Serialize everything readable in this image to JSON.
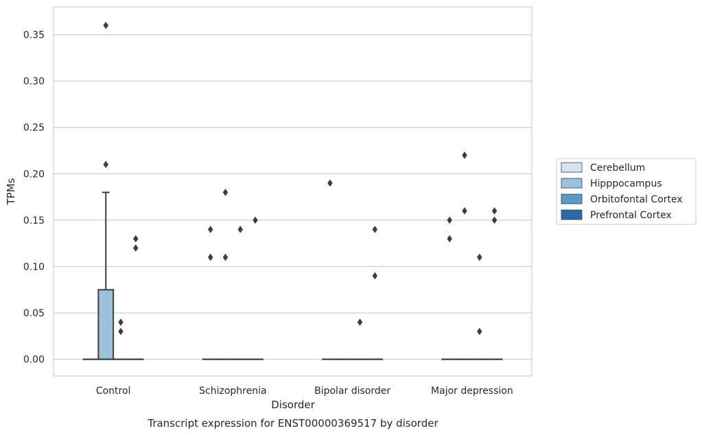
{
  "chart_data": {
    "type": "box",
    "title": "Transcript expression for ENST00000369517 by disorder",
    "xlabel": "Disorder",
    "ylabel": "TPMs",
    "ylim": [
      -0.018,
      0.38
    ],
    "yticks": [
      "0.00",
      "0.05",
      "0.10",
      "0.15",
      "0.20",
      "0.25",
      "0.30",
      "0.35"
    ],
    "ytick_values": [
      0,
      0.05,
      0.1,
      0.15,
      0.2,
      0.25,
      0.3,
      0.35
    ],
    "grid": "horizontal",
    "legend_position": "right",
    "categories": [
      "Control",
      "Schizophrenia",
      "Bipolar disorder",
      "Major depression"
    ],
    "series": [
      {
        "name": "Cerebellum",
        "color": "#d6e3f0",
        "boxes": [
          {
            "q1": 0,
            "median": 0,
            "q3": 0,
            "whislo": 0,
            "whishi": 0,
            "fliers": []
          },
          {
            "q1": 0,
            "median": 0,
            "q3": 0,
            "whislo": 0,
            "whishi": 0,
            "fliers": [
              0.14,
              0.11
            ]
          },
          {
            "q1": 0,
            "median": 0,
            "q3": 0,
            "whislo": 0,
            "whishi": 0,
            "fliers": [
              0.19
            ]
          },
          {
            "q1": 0,
            "median": 0,
            "q3": 0,
            "whislo": 0,
            "whishi": 0,
            "fliers": [
              0.15,
              0.13
            ]
          }
        ]
      },
      {
        "name": "Hipppocampus",
        "color": "#9bc2da",
        "boxes": [
          {
            "q1": 0,
            "median": 0,
            "q3": 0.075,
            "whislo": 0,
            "whishi": 0.18,
            "fliers": [
              0.36,
              0.21
            ]
          },
          {
            "q1": 0,
            "median": 0,
            "q3": 0,
            "whislo": 0,
            "whishi": 0,
            "fliers": [
              0.18,
              0.11
            ]
          },
          {
            "q1": 0,
            "median": 0,
            "q3": 0,
            "whislo": 0,
            "whishi": 0,
            "fliers": []
          },
          {
            "q1": 0,
            "median": 0,
            "q3": 0,
            "whislo": 0,
            "whishi": 0,
            "fliers": [
              0.22,
              0.16
            ]
          }
        ]
      },
      {
        "name": "Orbitofontal Cortex",
        "color": "#5a9ac8",
        "boxes": [
          {
            "q1": 0,
            "median": 0,
            "q3": 0,
            "whislo": 0,
            "whishi": 0,
            "fliers": [
              0.04,
              0.03
            ]
          },
          {
            "q1": 0,
            "median": 0,
            "q3": 0,
            "whislo": 0,
            "whishi": 0,
            "fliers": [
              0.14
            ]
          },
          {
            "q1": 0,
            "median": 0,
            "q3": 0,
            "whislo": 0,
            "whishi": 0,
            "fliers": [
              0.04
            ]
          },
          {
            "q1": 0,
            "median": 0,
            "q3": 0,
            "whislo": 0,
            "whishi": 0,
            "fliers": [
              0.11,
              0.03
            ]
          }
        ]
      },
      {
        "name": "Prefrontal Cortex",
        "color": "#2a6aac",
        "boxes": [
          {
            "q1": 0,
            "median": 0,
            "q3": 0,
            "whislo": 0,
            "whishi": 0,
            "fliers": [
              0.13,
              0.12
            ]
          },
          {
            "q1": 0,
            "median": 0,
            "q3": 0,
            "whislo": 0,
            "whishi": 0,
            "fliers": [
              0.15
            ]
          },
          {
            "q1": 0,
            "median": 0,
            "q3": 0,
            "whislo": 0,
            "whishi": 0,
            "fliers": [
              0.14,
              0.09
            ]
          },
          {
            "q1": 0,
            "median": 0,
            "q3": 0,
            "whislo": 0,
            "whishi": 0,
            "fliers": [
              0.16,
              0.15
            ]
          }
        ]
      }
    ]
  }
}
